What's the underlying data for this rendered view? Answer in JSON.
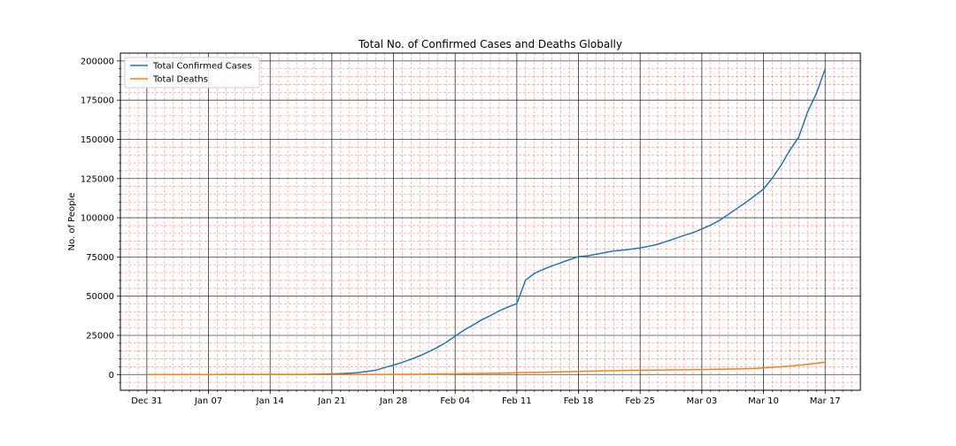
{
  "chart_data": {
    "type": "line",
    "title": "Total No. of Confirmed Cases and Deaths Globally",
    "xlabel": "",
    "ylabel": "No. of People",
    "x_axis": {
      "type": "date",
      "range": [
        "2019-12-28",
        "2020-03-21"
      ],
      "ticks": [
        {
          "date": "2019-12-31",
          "label": "Dec 31"
        },
        {
          "date": "2020-01-07",
          "label": "Jan 07"
        },
        {
          "date": "2020-01-14",
          "label": "Jan 14"
        },
        {
          "date": "2020-01-21",
          "label": "Jan 21"
        },
        {
          "date": "2020-01-28",
          "label": "Jan 28"
        },
        {
          "date": "2020-02-04",
          "label": "Feb 04"
        },
        {
          "date": "2020-02-11",
          "label": "Feb 11"
        },
        {
          "date": "2020-02-18",
          "label": "Feb 18"
        },
        {
          "date": "2020-02-25",
          "label": "Feb 25"
        },
        {
          "date": "2020-03-03",
          "label": "Mar 03"
        },
        {
          "date": "2020-03-10",
          "label": "Mar 10"
        },
        {
          "date": "2020-03-17",
          "label": "Mar 17"
        }
      ]
    },
    "y_axis": {
      "range": [
        -10000,
        205000
      ],
      "ticks": [
        {
          "value": 0,
          "label": "0"
        },
        {
          "value": 25000,
          "label": "25000"
        },
        {
          "value": 50000,
          "label": "50000"
        },
        {
          "value": 75000,
          "label": "75000"
        },
        {
          "value": 100000,
          "label": "100000"
        },
        {
          "value": 125000,
          "label": "125000"
        },
        {
          "value": 150000,
          "label": "150000"
        },
        {
          "value": 175000,
          "label": "175000"
        },
        {
          "value": 200000,
          "label": "200000"
        }
      ]
    },
    "grid": {
      "major": true,
      "minor": true,
      "major_color": "#000000",
      "minor_color": "#ff0000"
    },
    "legend": "top-left",
    "series": [
      {
        "name": "Total Confirmed Cases",
        "color": "#1f77b4",
        "points": [
          [
            "2019-12-31",
            0
          ],
          [
            "2020-01-07",
            50
          ],
          [
            "2020-01-14",
            60
          ],
          [
            "2020-01-18",
            100
          ],
          [
            "2020-01-20",
            280
          ],
          [
            "2020-01-22",
            570
          ],
          [
            "2020-01-23",
            830
          ],
          [
            "2020-01-24",
            1300
          ],
          [
            "2020-01-25",
            2000
          ],
          [
            "2020-01-26",
            2800
          ],
          [
            "2020-01-27",
            4500
          ],
          [
            "2020-01-28",
            6000
          ],
          [
            "2020-01-29",
            7800
          ],
          [
            "2020-01-30",
            9800
          ],
          [
            "2020-01-31",
            12000
          ],
          [
            "2020-02-01",
            14500
          ],
          [
            "2020-02-02",
            17400
          ],
          [
            "2020-02-03",
            20600
          ],
          [
            "2020-02-04",
            24500
          ],
          [
            "2020-02-05",
            28300
          ],
          [
            "2020-02-06",
            31500
          ],
          [
            "2020-02-07",
            34900
          ],
          [
            "2020-02-08",
            37600
          ],
          [
            "2020-02-09",
            40600
          ],
          [
            "2020-02-10",
            43100
          ],
          [
            "2020-02-11",
            45200
          ],
          [
            "2020-02-12",
            60300
          ],
          [
            "2020-02-13",
            64500
          ],
          [
            "2020-02-14",
            67100
          ],
          [
            "2020-02-15",
            69300
          ],
          [
            "2020-02-16",
            71300
          ],
          [
            "2020-02-17",
            73300
          ],
          [
            "2020-02-18",
            75200
          ],
          [
            "2020-02-19",
            75700
          ],
          [
            "2020-02-20",
            76700
          ],
          [
            "2020-02-21",
            77800
          ],
          [
            "2020-02-22",
            78800
          ],
          [
            "2020-02-23",
            79300
          ],
          [
            "2020-02-24",
            80000
          ],
          [
            "2020-02-25",
            80800
          ],
          [
            "2020-02-26",
            81800
          ],
          [
            "2020-02-27",
            83100
          ],
          [
            "2020-02-28",
            84900
          ],
          [
            "2020-02-29",
            86800
          ],
          [
            "2020-03-01",
            88800
          ],
          [
            "2020-03-02",
            90500
          ],
          [
            "2020-03-03",
            92900
          ],
          [
            "2020-03-04",
            95300
          ],
          [
            "2020-03-05",
            98300
          ],
          [
            "2020-03-06",
            102100
          ],
          [
            "2020-03-07",
            106000
          ],
          [
            "2020-03-08",
            109800
          ],
          [
            "2020-03-09",
            114000
          ],
          [
            "2020-03-10",
            118300
          ],
          [
            "2020-03-11",
            125300
          ],
          [
            "2020-03-12",
            133500
          ],
          [
            "2020-03-13",
            143200
          ],
          [
            "2020-03-14",
            151400
          ],
          [
            "2020-03-15",
            167400
          ],
          [
            "2020-03-16",
            179200
          ],
          [
            "2020-03-17",
            194900
          ]
        ]
      },
      {
        "name": "Total Deaths",
        "color": "#ff7f0e",
        "points": [
          [
            "2019-12-31",
            0
          ],
          [
            "2020-01-14",
            1
          ],
          [
            "2020-01-21",
            6
          ],
          [
            "2020-01-23",
            25
          ],
          [
            "2020-01-25",
            56
          ],
          [
            "2020-01-27",
            106
          ],
          [
            "2020-01-29",
            170
          ],
          [
            "2020-01-31",
            259
          ],
          [
            "2020-02-02",
            362
          ],
          [
            "2020-02-04",
            492
          ],
          [
            "2020-02-06",
            638
          ],
          [
            "2020-02-08",
            813
          ],
          [
            "2020-02-10",
            1016
          ],
          [
            "2020-02-12",
            1370
          ],
          [
            "2020-02-14",
            1526
          ],
          [
            "2020-02-16",
            1770
          ],
          [
            "2020-02-18",
            2004
          ],
          [
            "2020-02-20",
            2247
          ],
          [
            "2020-02-22",
            2462
          ],
          [
            "2020-02-24",
            2707
          ],
          [
            "2020-02-26",
            2800
          ],
          [
            "2020-02-28",
            2924
          ],
          [
            "2020-03-01",
            3048
          ],
          [
            "2020-03-03",
            3202
          ],
          [
            "2020-03-05",
            3387
          ],
          [
            "2020-03-07",
            3600
          ],
          [
            "2020-03-09",
            3900
          ],
          [
            "2020-03-11",
            4600
          ],
          [
            "2020-03-13",
            5400
          ],
          [
            "2020-03-15",
            6500
          ],
          [
            "2020-03-17",
            7900
          ]
        ]
      }
    ]
  }
}
